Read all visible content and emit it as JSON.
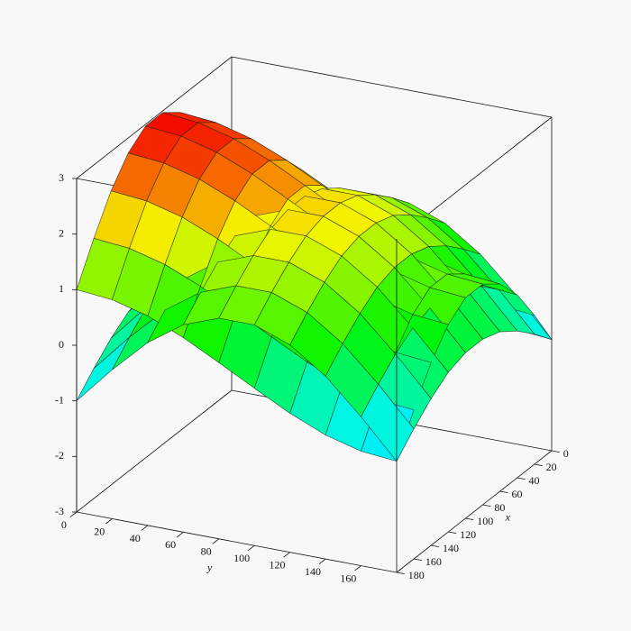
{
  "chart_data": {
    "type": "surface",
    "xlabel": "x",
    "ylabel": "y",
    "x": [
      0,
      20,
      40,
      60,
      80,
      100,
      120,
      140,
      160,
      180
    ],
    "y": [
      0,
      20,
      40,
      60,
      80,
      100,
      120,
      140,
      160,
      180
    ],
    "series": [
      {
        "values": [
          [
            1,
            0.94,
            0.77,
            0.5,
            0.17,
            -0.17,
            -0.5,
            -0.77,
            -0.94,
            -1
          ],
          [
            1.68,
            1.62,
            1.45,
            1.18,
            0.85,
            0.51,
            0.18,
            -0.09,
            -0.26,
            -0.32
          ],
          [
            2.29,
            2.23,
            2.06,
            1.79,
            1.46,
            1.12,
            0.79,
            0.52,
            0.35,
            0.29
          ],
          [
            2.73,
            2.67,
            2.5,
            2.23,
            1.9,
            1.56,
            1.23,
            0.96,
            0.79,
            0.73
          ],
          [
            2.97,
            2.91,
            2.74,
            2.47,
            2.14,
            1.8,
            1.47,
            1.2,
            1.03,
            0.97
          ],
          [
            2.97,
            2.91,
            2.74,
            2.47,
            2.14,
            1.8,
            1.47,
            1.2,
            1.03,
            0.97
          ],
          [
            2.73,
            2.67,
            2.5,
            2.23,
            1.9,
            1.56,
            1.23,
            0.96,
            0.79,
            0.73
          ],
          [
            2.29,
            2.23,
            2.06,
            1.79,
            1.46,
            1.12,
            0.79,
            0.52,
            0.35,
            0.29
          ],
          [
            1.68,
            1.62,
            1.45,
            1.18,
            0.85,
            0.51,
            0.18,
            -0.09,
            -0.26,
            -0.32
          ],
          [
            1,
            0.94,
            0.77,
            0.5,
            0.17,
            -0.17,
            -0.5,
            -0.77,
            -0.94,
            -1
          ]
        ]
      },
      {
        "values": [
          [
            -1,
            -0.32,
            0.29,
            0.73,
            0.97,
            0.97,
            0.73,
            0.29,
            -0.32,
            -1
          ],
          [
            -0.66,
            0.02,
            0.63,
            1.07,
            1.31,
            1.31,
            1.07,
            0.63,
            0.02,
            -0.66
          ],
          [
            -0.36,
            0.32,
            0.93,
            1.37,
            1.61,
            1.61,
            1.37,
            0.93,
            0.32,
            -0.36
          ],
          [
            -0.13,
            0.55,
            1.16,
            1.6,
            1.84,
            1.84,
            1.6,
            1.16,
            0.55,
            -0.13
          ],
          [
            -0.02,
            0.66,
            1.27,
            1.71,
            1.95,
            1.95,
            1.71,
            1.27,
            0.66,
            -0.02
          ],
          [
            -0.02,
            0.66,
            1.27,
            1.71,
            1.95,
            1.95,
            1.71,
            1.27,
            0.66,
            -0.02
          ],
          [
            -0.13,
            0.55,
            1.16,
            1.6,
            1.84,
            1.84,
            1.6,
            1.16,
            0.55,
            -0.13
          ],
          [
            -0.36,
            0.32,
            0.93,
            1.37,
            1.61,
            1.61,
            1.37,
            0.93,
            0.32,
            -0.36
          ],
          [
            -0.66,
            0.02,
            0.63,
            1.07,
            1.31,
            1.31,
            1.07,
            0.63,
            0.02,
            -0.66
          ],
          [
            -1,
            -0.32,
            0.29,
            0.73,
            0.97,
            0.97,
            0.73,
            0.29,
            -0.32,
            -1
          ]
        ]
      }
    ],
    "xlim": [
      0,
      180
    ],
    "ylim": [
      0,
      180
    ],
    "zlim": [
      -3,
      3
    ],
    "xticks": [
      0,
      20,
      40,
      60,
      80,
      100,
      120,
      140,
      160,
      180
    ],
    "yticks": [
      0,
      20,
      40,
      60,
      80,
      100,
      120,
      140,
      160
    ],
    "zticks": [
      -3,
      -2,
      -1,
      0,
      1,
      2,
      3
    ]
  }
}
